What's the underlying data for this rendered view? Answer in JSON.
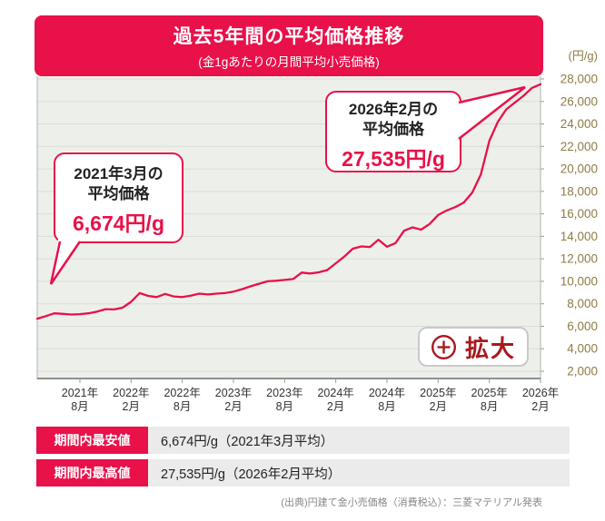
{
  "header": {
    "title": "過去5年間の平均価格推移",
    "subtitle": "(金1gあたりの月間平均小売価格)"
  },
  "chart_data": {
    "type": "line",
    "title": "過去5年間の平均価格推移",
    "subtitle": "(金1gあたりの月間平均小売価格)",
    "unit_label": "(円/g)",
    "x_start_month": "2021年3月",
    "x_end_month": "2026年2月",
    "ylim": [
      2000,
      28000
    ],
    "grid": true,
    "legend": "none",
    "y_tick_labels": [
      "2,000",
      "4,000",
      "6,000",
      "8,000",
      "10,000",
      "12,000",
      "14,000",
      "16,000",
      "18,000",
      "20,000",
      "22,000",
      "24,000",
      "26,000",
      "28,000"
    ],
    "x_tick_labels": [
      {
        "year": "2021年",
        "month": "8月",
        "month_index": 5
      },
      {
        "year": "2022年",
        "month": "2月",
        "month_index": 11
      },
      {
        "year": "2022年",
        "month": "8月",
        "month_index": 17
      },
      {
        "year": "2023年",
        "month": "2月",
        "month_index": 23
      },
      {
        "year": "2023年",
        "month": "8月",
        "month_index": 29
      },
      {
        "year": "2024年",
        "month": "2月",
        "month_index": 35
      },
      {
        "year": "2024年",
        "month": "8月",
        "month_index": 41
      },
      {
        "year": "2025年",
        "month": "2月",
        "month_index": 47
      },
      {
        "year": "2025年",
        "month": "8月",
        "month_index": 53
      },
      {
        "year": "2026年",
        "month": "2月",
        "month_index": 59
      }
    ],
    "values": [
      6674,
      6900,
      7150,
      7100,
      7050,
      7080,
      7150,
      7300,
      7520,
      7500,
      7650,
      8180,
      8950,
      8700,
      8600,
      8880,
      8650,
      8600,
      8730,
      8900,
      8830,
      8900,
      8950,
      9080,
      9300,
      9550,
      9780,
      10000,
      10050,
      10120,
      10200,
      10780,
      10700,
      10800,
      11000,
      11600,
      12200,
      12900,
      13100,
      13050,
      13700,
      13080,
      13400,
      14500,
      14800,
      14600,
      15100,
      15900,
      16300,
      16600,
      17000,
      17900,
      19500,
      22500,
      24200,
      25300,
      25900,
      26500,
      27200,
      27535
    ]
  },
  "annotations": {
    "low": {
      "line1": "2021年3月の",
      "line2": "平均価格",
      "value": "6,674円/g"
    },
    "high": {
      "line1": "2026年2月の",
      "line2": "平均価格",
      "value": "27,535円/g"
    }
  },
  "zoom_button": {
    "label": "拡大",
    "icon": "plus-circle-icon"
  },
  "stats": {
    "rows": [
      {
        "label": "期間内最安値",
        "value": "6,674円/g（2021年3月平均）"
      },
      {
        "label": "期間内最高値",
        "value": "27,535円/g（2026年2月平均）"
      }
    ]
  },
  "source_note": "(出典)円建て金小売価格（消費税込）：三菱マテリアル発表",
  "colors": {
    "accent": "#e8114a",
    "dark_red": "#a8191d",
    "axis_label": "#8d7c44",
    "plot_bg": "#edf0ea",
    "grid_line": "#d9ded4",
    "x_label": "#333333"
  }
}
